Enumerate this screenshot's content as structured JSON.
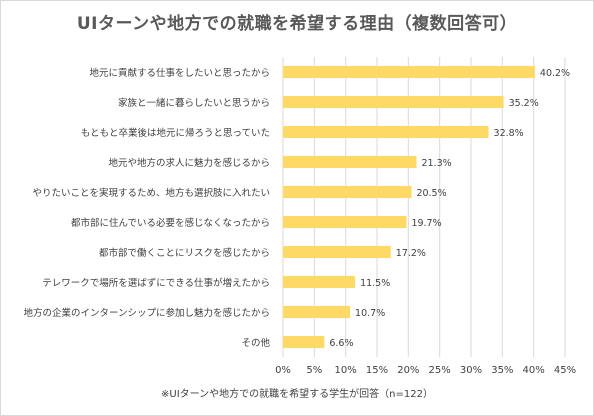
{
  "title": "UIターンや地方での就職を希望する理由（複数回答可）",
  "footnote": "※UIターンや地方での就職を希望する学生が回答（n=122）",
  "colors": {
    "bar": "#ffd966",
    "grid": "#d9d9d9",
    "text": "#404040"
  },
  "chart_data": {
    "type": "bar",
    "orientation": "horizontal",
    "categories": [
      "地元に貢献する仕事をしたいと思ったから",
      "家族と一緒に暮らしたいと思うから",
      "もともと卒業後は地元に帰ろうと思っていた",
      "地元や地方の求人に魅力を感じるから",
      "やりたいことを実現するため、地方も選択肢に入れたい",
      "都市部に住んでいる必要を感じなくなったから",
      "都市部で働くことにリスクを感じたから",
      "テレワークで場所を選ばずにできる仕事が増えたから",
      "地方の企業のインターンシップに参加し魅力を感じたから",
      "その他"
    ],
    "values": [
      40.2,
      35.2,
      32.8,
      21.3,
      20.5,
      19.7,
      17.2,
      11.5,
      10.7,
      6.6
    ],
    "value_labels": [
      "40.2%",
      "35.2%",
      "32.8%",
      "21.3%",
      "20.5%",
      "19.7%",
      "17.2%",
      "11.5%",
      "10.7%",
      "6.6%"
    ],
    "xlim": [
      0,
      45
    ],
    "x_ticks": [
      0,
      5,
      10,
      15,
      20,
      25,
      30,
      35,
      40,
      45
    ],
    "x_tick_labels": [
      "0%",
      "5%",
      "10%",
      "15%",
      "20%",
      "25%",
      "30%",
      "35%",
      "40%",
      "45%"
    ],
    "grid": true
  }
}
